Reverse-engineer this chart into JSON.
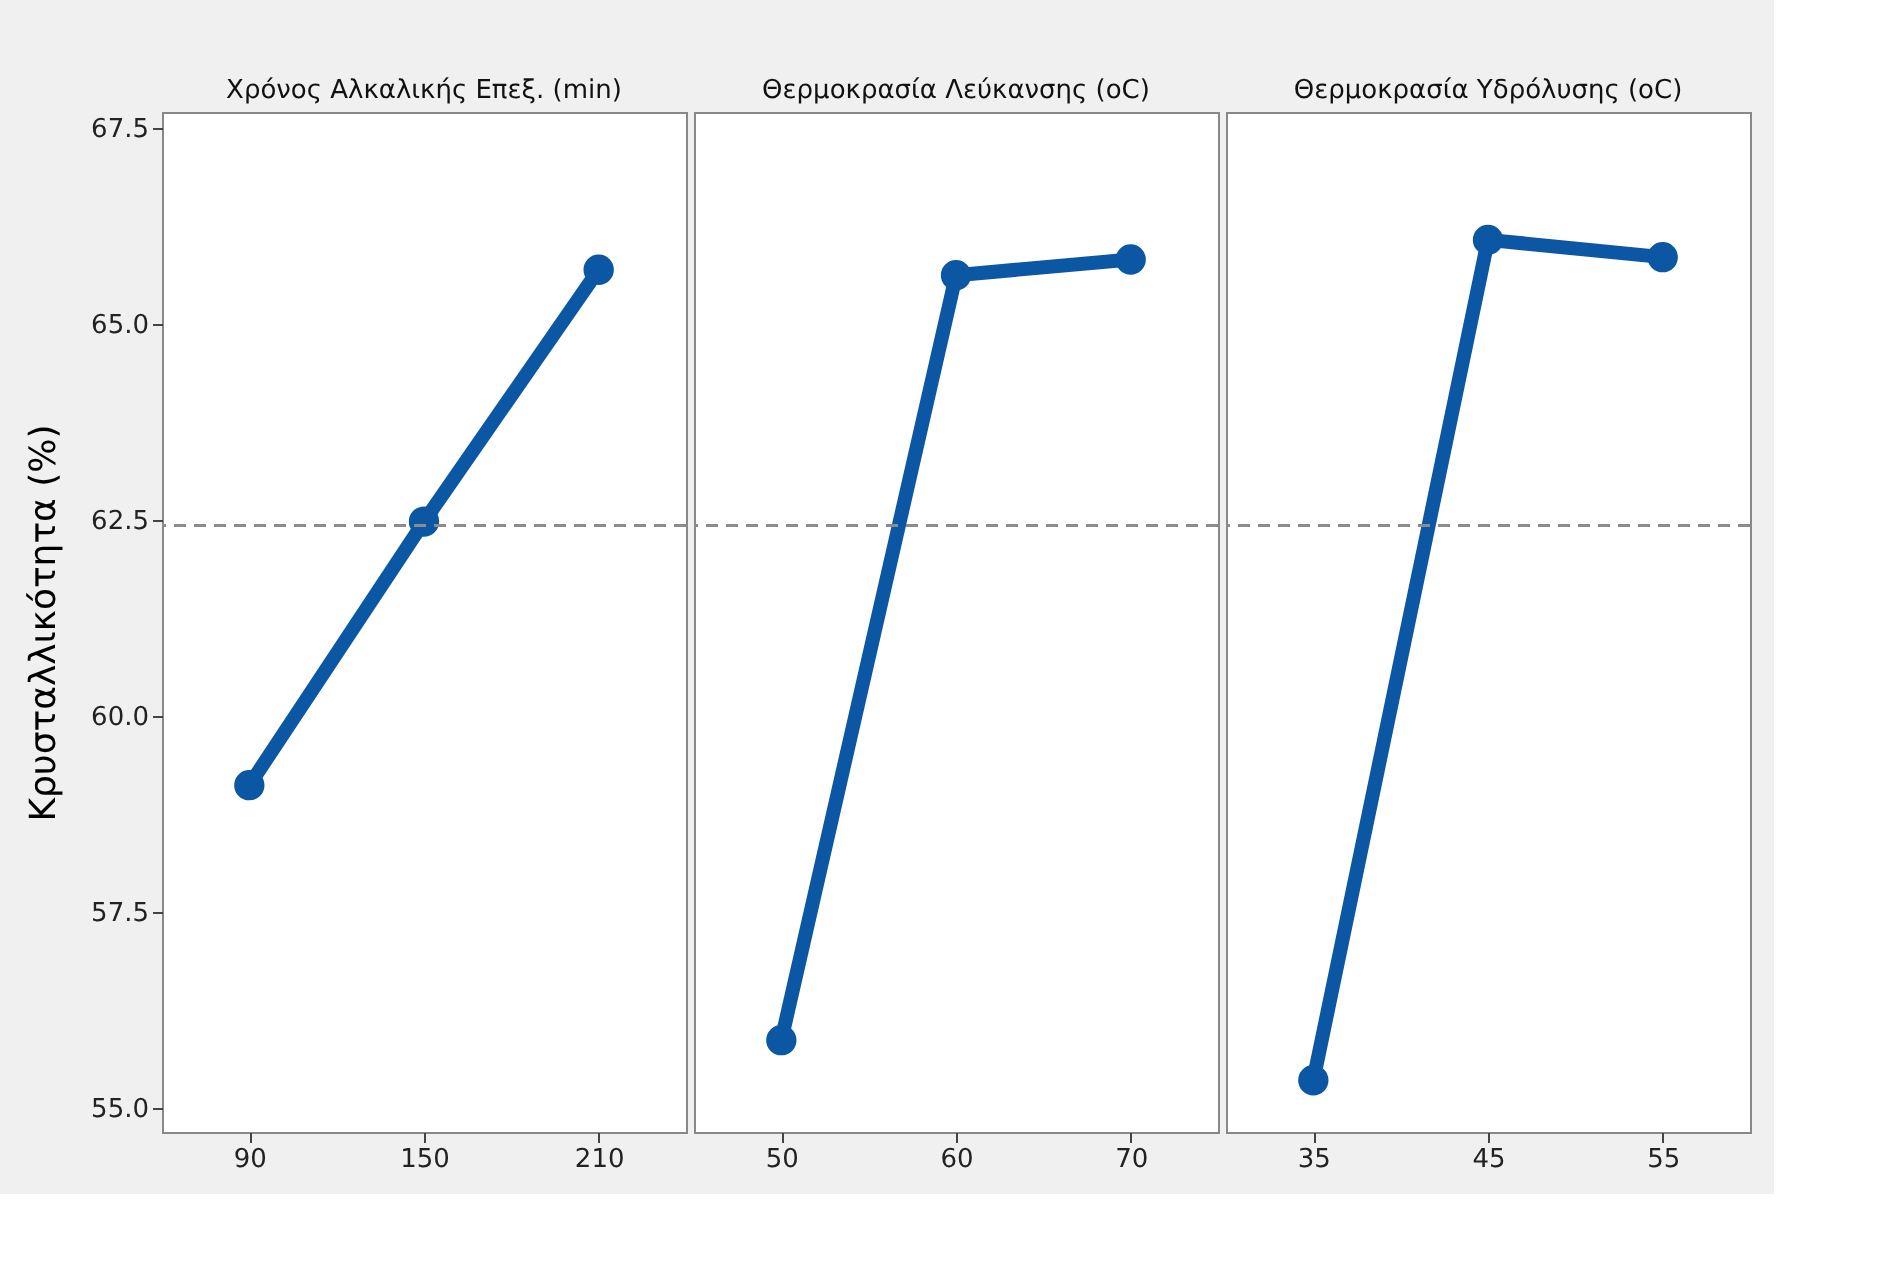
{
  "chart_data": [
    {
      "type": "line",
      "title": "Χρόνος Αλκαλικής Επεξ. (min)",
      "ylabel": "Κρυσταλλικότητα (%)",
      "categories": [
        "90",
        "150",
        "210"
      ],
      "values": [
        59.12,
        62.48,
        65.69
      ],
      "color": "#0b57a4",
      "ylim": [
        54.7,
        67.7
      ],
      "yticks": [
        {
          "value": 55,
          "label": "55.0"
        },
        {
          "value": 57.5,
          "label": "57.5"
        },
        {
          "value": 60,
          "label": "60.0"
        },
        {
          "value": 62.5,
          "label": "62.5"
        },
        {
          "value": 65,
          "label": "65.0"
        },
        {
          "value": 67.5,
          "label": "67.5"
        }
      ],
      "marker": "circle",
      "grid": false,
      "ref_lines": [
        {
          "axis": "y",
          "value": 62.43,
          "color": "#8c8c8c",
          "line_style": "dashed"
        }
      ]
    },
    {
      "type": "line",
      "title": "Θερμοκρασία Λεύκανσης (oC)",
      "categories": [
        "50",
        "60",
        "70"
      ],
      "values": [
        55.87,
        65.62,
        65.82
      ],
      "color": "#0b57a4",
      "ylim": [
        54.7,
        67.7
      ],
      "marker": "circle",
      "grid": false,
      "tick_labels": "x",
      "ref_lines": [
        {
          "axis": "y",
          "value": 62.43,
          "color": "#8c8c8c",
          "line_style": "dashed"
        }
      ]
    },
    {
      "type": "line",
      "title": "Θερμοκρασία Υδρόλυσης (oC)",
      "categories": [
        "35",
        "45",
        "55"
      ],
      "values": [
        55.36,
        66.07,
        65.85
      ],
      "color": "#0b57a4",
      "ylim": [
        54.7,
        67.7
      ],
      "marker": "circle",
      "grid": false,
      "tick_labels": "x",
      "ref_lines": [
        {
          "axis": "y",
          "value": 62.43,
          "color": "#8c8c8c",
          "line_style": "dashed"
        }
      ]
    }
  ]
}
